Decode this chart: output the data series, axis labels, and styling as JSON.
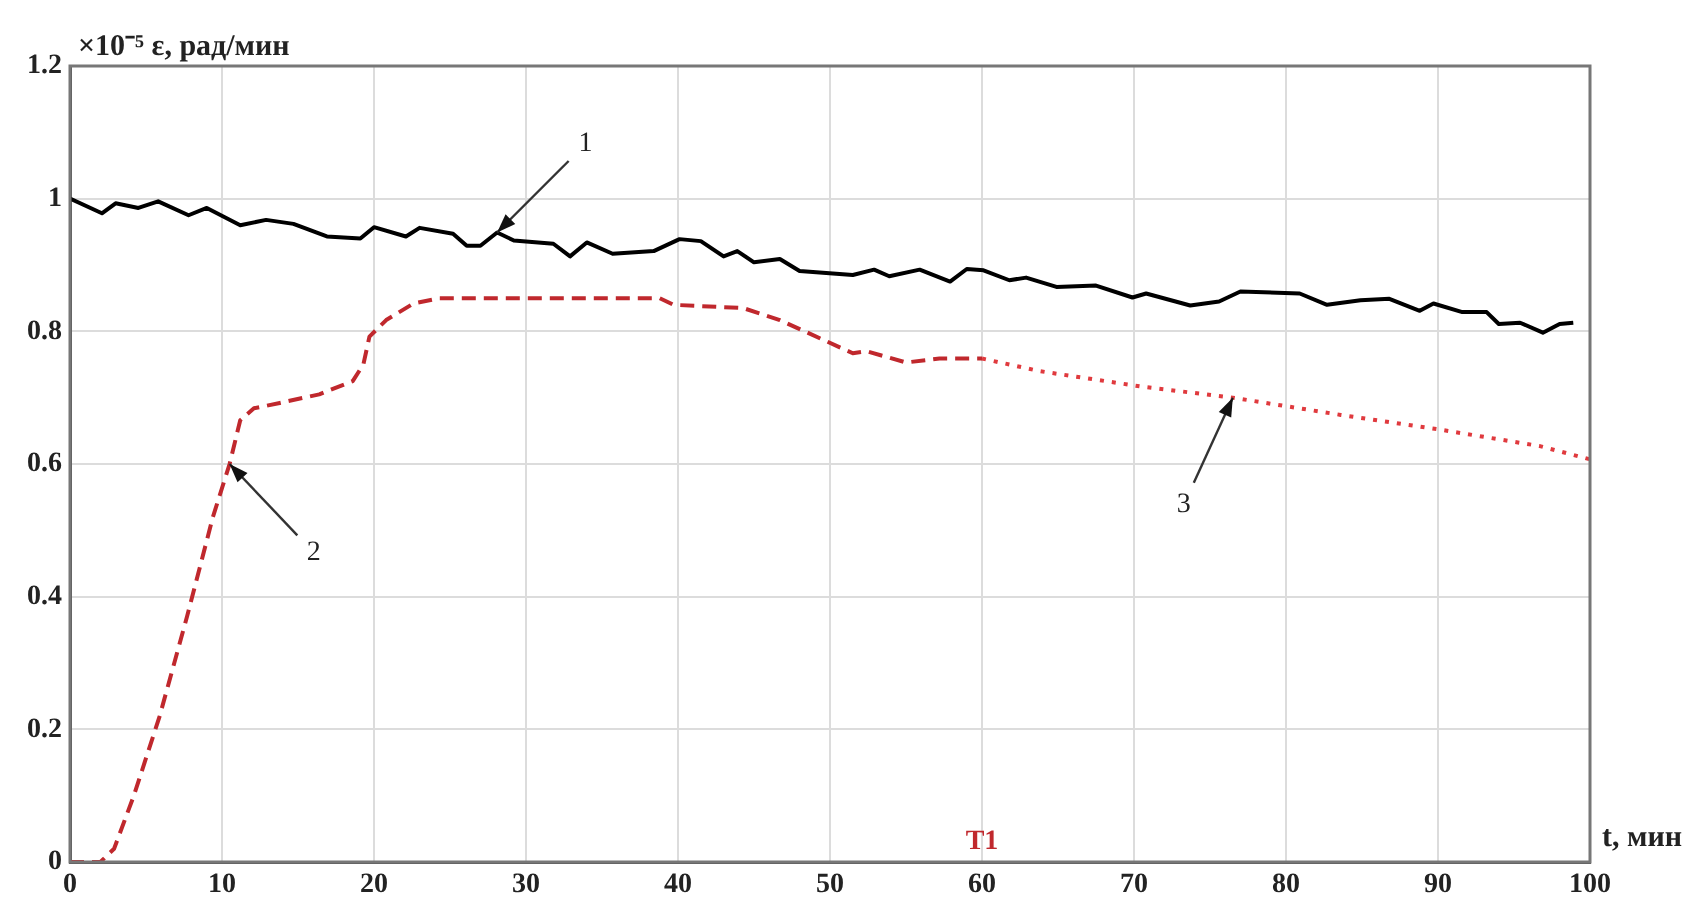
{
  "chart_data": {
    "type": "line",
    "xlabel": "t, мин",
    "ylabel": "×10⁻⁵ ε, рад/мин",
    "xlim": [
      0,
      100
    ],
    "xticks": [
      0,
      10,
      20,
      30,
      40,
      50,
      60,
      70,
      80,
      90,
      100
    ],
    "ylim": [
      0,
      1.2
    ],
    "yticks": [
      0,
      0.2,
      0.4,
      0.6,
      0.8,
      1,
      1.2
    ],
    "grid": true,
    "legend": false,
    "marker": "none",
    "series": [
      {
        "color": "#000000",
        "line_style": "solid",
        "x": [
          0,
          2.1,
          3,
          4.5,
          5.8,
          7.8,
          9,
          11.2,
          12.9,
          14.7,
          16.9,
          19.1,
          20,
          22.1,
          23,
          25.2,
          26.1,
          27,
          28.1,
          29.2,
          31.8,
          32.9,
          34,
          35.7,
          38.4,
          40.1,
          41.5,
          43,
          43.9,
          45,
          46.7,
          48,
          51.5,
          52.9,
          53.9,
          55.9,
          57.9,
          59,
          60.1,
          61.8,
          62.9,
          64.9,
          67.5,
          69.9,
          70.8,
          73.7,
          75.6,
          77,
          80.9,
          82.7,
          84.9,
          86.8,
          88.8,
          89.7,
          91.6,
          93.2,
          94,
          95.4,
          96.9,
          98,
          98.9
        ],
        "values": [
          1.0,
          0.978,
          0.993,
          0.986,
          0.996,
          0.975,
          0.986,
          0.96,
          0.968,
          0.962,
          0.943,
          0.94,
          0.957,
          0.943,
          0.956,
          0.947,
          0.929,
          0.929,
          0.949,
          0.937,
          0.932,
          0.913,
          0.934,
          0.917,
          0.921,
          0.939,
          0.936,
          0.913,
          0.921,
          0.904,
          0.909,
          0.891,
          0.885,
          0.893,
          0.883,
          0.893,
          0.875,
          0.894,
          0.892,
          0.877,
          0.881,
          0.867,
          0.869,
          0.851,
          0.857,
          0.839,
          0.845,
          0.86,
          0.857,
          0.84,
          0.847,
          0.849,
          0.831,
          0.842,
          0.829,
          0.829,
          0.811,
          0.813,
          0.798,
          0.811,
          0.813
        ]
      },
      {
        "color": "#c0282d",
        "line_style": "dashed",
        "x": [
          0,
          2,
          2.9,
          4.2,
          5.9,
          7.7,
          9.4,
          10.5,
          11.2,
          12.1,
          13.8,
          16.4,
          18.6,
          19.3,
          19.7,
          20.8,
          22.6,
          24.3,
          30,
          38.8,
          39.7,
          44.3,
          46.7,
          51.5,
          52.4,
          55,
          57.2,
          60
        ],
        "values": [
          0,
          0,
          0.02,
          0.1,
          0.22,
          0.37,
          0.52,
          0.6,
          0.666,
          0.684,
          0.692,
          0.705,
          0.725,
          0.75,
          0.792,
          0.817,
          0.842,
          0.85,
          0.85,
          0.85,
          0.84,
          0.835,
          0.817,
          0.767,
          0.77,
          0.753,
          0.759,
          0.759
        ]
      },
      {
        "color": "#e03a3e",
        "line_style": "dotted",
        "x": [
          60,
          63.8,
          70.4,
          76.5,
          83.6,
          90.1,
          96.7,
          100
        ],
        "values": [
          0.759,
          0.74,
          0.717,
          0.7,
          0.674,
          0.652,
          0.627,
          0.607
        ]
      }
    ],
    "annotations": [
      {
        "text": "1",
        "x": 28.1,
        "y": 0.949
      },
      {
        "text": "2",
        "x": 10.5,
        "y": 0.6
      },
      {
        "text": "3",
        "x": 76.5,
        "y": 0.7
      },
      "T1"
    ]
  }
}
